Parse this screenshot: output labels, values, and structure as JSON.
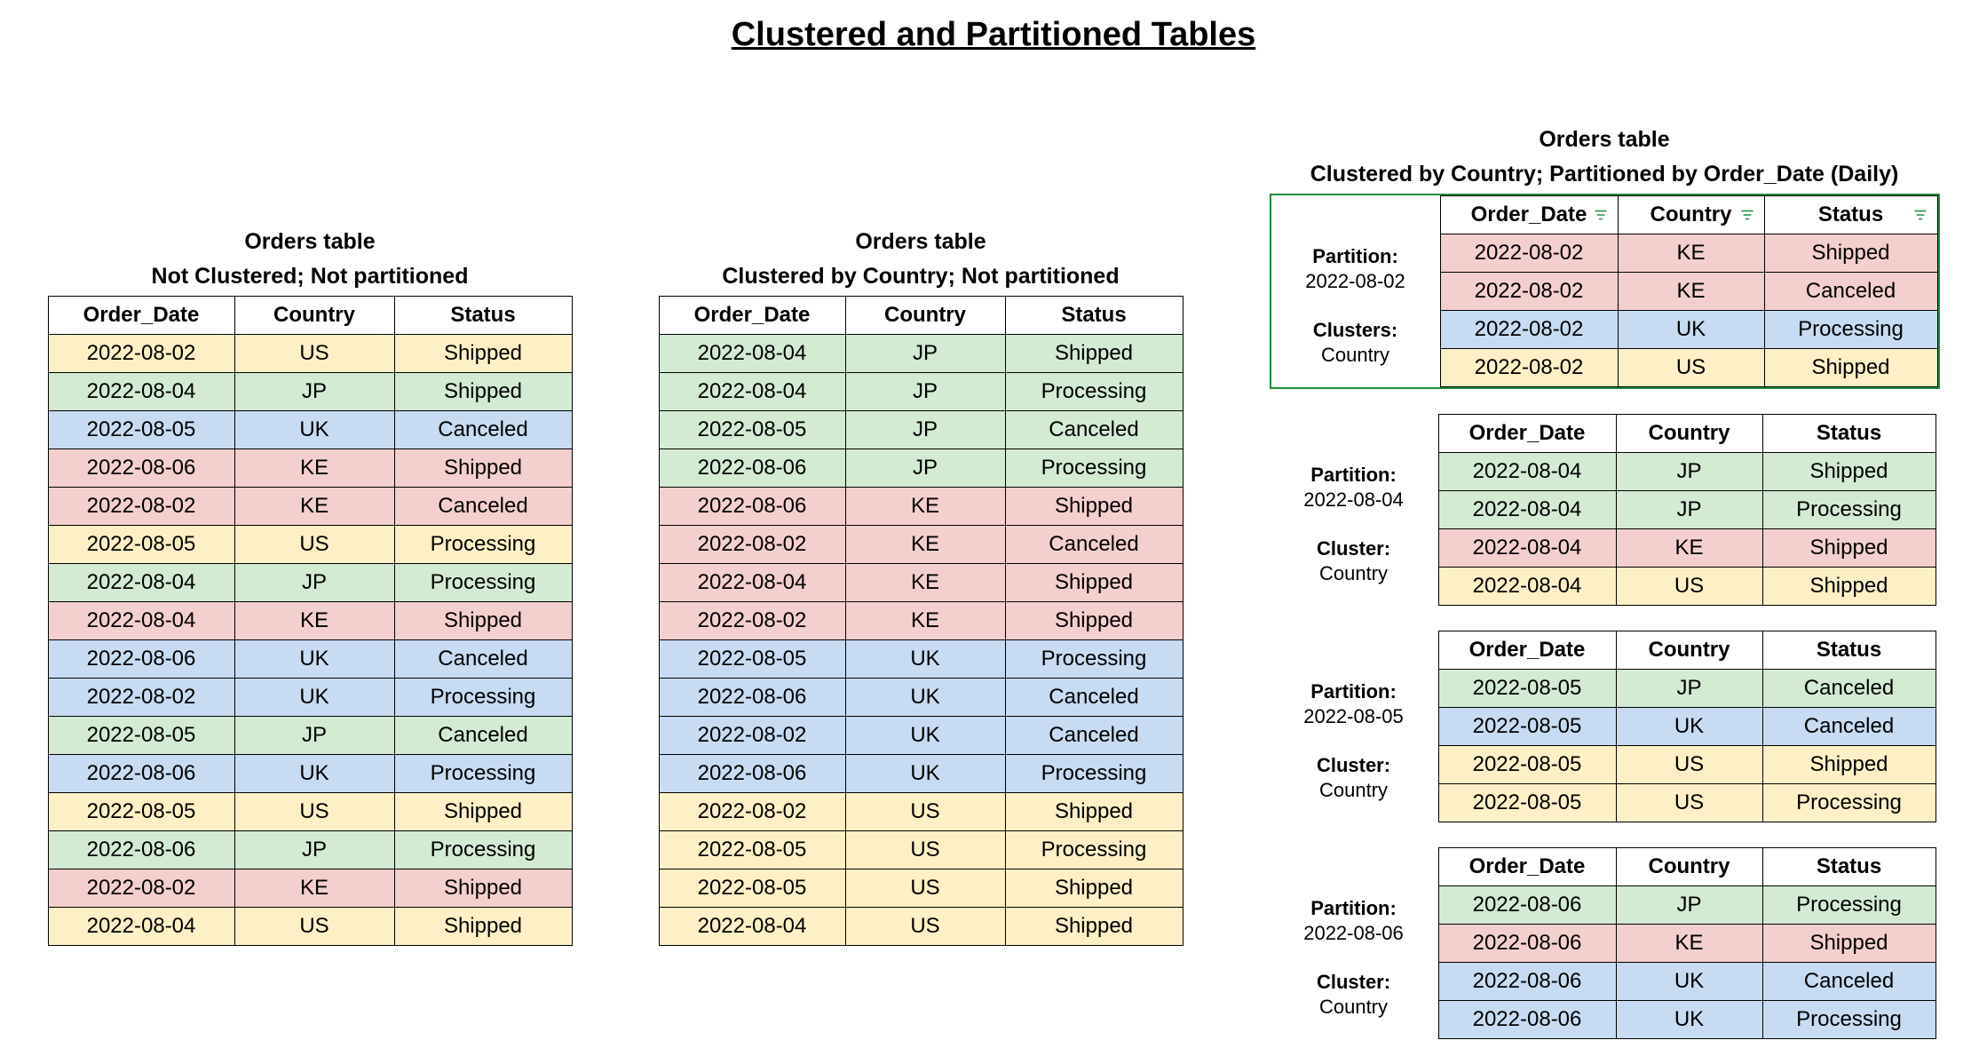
{
  "page_title": "Clustered and Partitioned Tables",
  "colors": {
    "US": "#fdf0c6",
    "JP": "#d3ead3",
    "UK": "#c7dbf2",
    "KE": "#f3cfce",
    "header_bg": "#ffffff",
    "border": "#000000",
    "highlight_border": "#1e8e3e",
    "filter_icon": "#1e8e3e"
  },
  "columns": [
    "Order_Date",
    "Country",
    "Status"
  ],
  "left": {
    "title": "Orders table",
    "subtitle": "Not Clustered; Not partitioned",
    "rows": [
      [
        "2022-08-02",
        "US",
        "Shipped"
      ],
      [
        "2022-08-04",
        "JP",
        "Shipped"
      ],
      [
        "2022-08-05",
        "UK",
        "Canceled"
      ],
      [
        "2022-08-06",
        "KE",
        "Shipped"
      ],
      [
        "2022-08-02",
        "KE",
        "Canceled"
      ],
      [
        "2022-08-05",
        "US",
        "Processing"
      ],
      [
        "2022-08-04",
        "JP",
        "Processing"
      ],
      [
        "2022-08-04",
        "KE",
        "Shipped"
      ],
      [
        "2022-08-06",
        "UK",
        "Canceled"
      ],
      [
        "2022-08-02",
        "UK",
        "Processing"
      ],
      [
        "2022-08-05",
        "JP",
        "Canceled"
      ],
      [
        "2022-08-06",
        "UK",
        "Processing"
      ],
      [
        "2022-08-05",
        "US",
        "Shipped"
      ],
      [
        "2022-08-06",
        "JP",
        "Processing"
      ],
      [
        "2022-08-02",
        "KE",
        "Shipped"
      ],
      [
        "2022-08-04",
        "US",
        "Shipped"
      ]
    ]
  },
  "middle": {
    "title": "Orders table",
    "subtitle": "Clustered by Country; Not partitioned",
    "rows": [
      [
        "2022-08-04",
        "JP",
        "Shipped"
      ],
      [
        "2022-08-04",
        "JP",
        "Processing"
      ],
      [
        "2022-08-05",
        "JP",
        "Canceled"
      ],
      [
        "2022-08-06",
        "JP",
        "Processing"
      ],
      [
        "2022-08-06",
        "KE",
        "Shipped"
      ],
      [
        "2022-08-02",
        "KE",
        "Canceled"
      ],
      [
        "2022-08-04",
        "KE",
        "Shipped"
      ],
      [
        "2022-08-02",
        "KE",
        "Shipped"
      ],
      [
        "2022-08-05",
        "UK",
        "Processing"
      ],
      [
        "2022-08-06",
        "UK",
        "Canceled"
      ],
      [
        "2022-08-02",
        "UK",
        "Canceled"
      ],
      [
        "2022-08-06",
        "UK",
        "Processing"
      ],
      [
        "2022-08-02",
        "US",
        "Shipped"
      ],
      [
        "2022-08-05",
        "US",
        "Processing"
      ],
      [
        "2022-08-05",
        "US",
        "Shipped"
      ],
      [
        "2022-08-04",
        "US",
        "Shipped"
      ]
    ]
  },
  "right": {
    "title": "Orders table",
    "subtitle": "Clustered by Country; Partitioned by Order_Date (Daily)",
    "partitions": [
      {
        "partition_label": "Partition:",
        "partition_value": "2022-08-02",
        "cluster_label": "Clusters:",
        "cluster_value": "Country",
        "show_filter_icons": true,
        "rows": [
          [
            "2022-08-02",
            "KE",
            "Shipped"
          ],
          [
            "2022-08-02",
            "KE",
            "Canceled"
          ],
          [
            "2022-08-02",
            "UK",
            "Processing"
          ],
          [
            "2022-08-02",
            "US",
            "Shipped"
          ]
        ]
      },
      {
        "partition_label": "Partition:",
        "partition_value": "2022-08-04",
        "cluster_label": "Cluster:",
        "cluster_value": "Country",
        "show_filter_icons": false,
        "rows": [
          [
            "2022-08-04",
            "JP",
            "Shipped"
          ],
          [
            "2022-08-04",
            "JP",
            "Processing"
          ],
          [
            "2022-08-04",
            "KE",
            "Shipped"
          ],
          [
            "2022-08-04",
            "US",
            "Shipped"
          ]
        ]
      },
      {
        "partition_label": "Partition:",
        "partition_value": "2022-08-05",
        "cluster_label": "Cluster:",
        "cluster_value": "Country",
        "show_filter_icons": false,
        "rows": [
          [
            "2022-08-05",
            "JP",
            "Canceled"
          ],
          [
            "2022-08-05",
            "UK",
            "Canceled"
          ],
          [
            "2022-08-05",
            "US",
            "Shipped"
          ],
          [
            "2022-08-05",
            "US",
            "Processing"
          ]
        ]
      },
      {
        "partition_label": "Partition:",
        "partition_value": "2022-08-06",
        "cluster_label": "Cluster:",
        "cluster_value": "Country",
        "show_filter_icons": false,
        "rows": [
          [
            "2022-08-06",
            "JP",
            "Processing"
          ],
          [
            "2022-08-06",
            "KE",
            "Shipped"
          ],
          [
            "2022-08-06",
            "UK",
            "Canceled"
          ],
          [
            "2022-08-06",
            "UK",
            "Processing"
          ]
        ]
      }
    ]
  }
}
